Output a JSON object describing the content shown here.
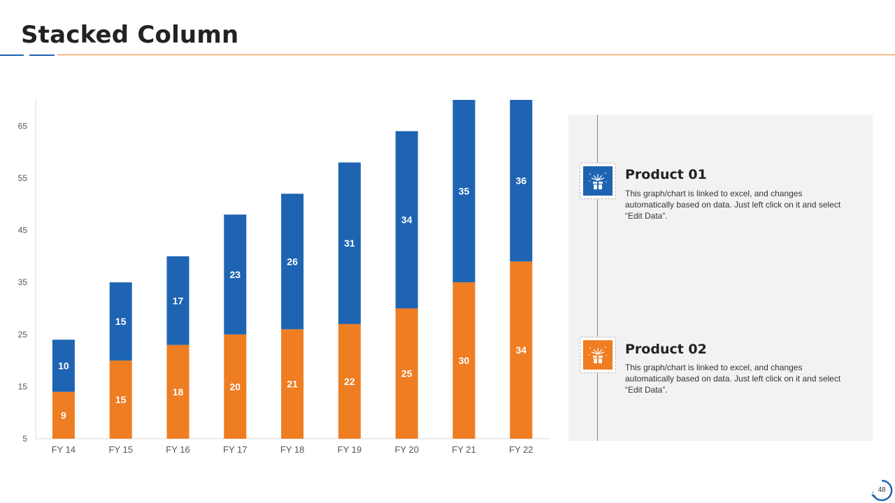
{
  "page": {
    "title": "Stacked Column",
    "page_number": "48"
  },
  "colors": {
    "product01": "#1e64b2",
    "product02": "#ef7d22",
    "panel": "#f2f2f2"
  },
  "legend": [
    {
      "title": "Product 01",
      "description": "This graph/chart is linked to excel, and changes automatically based on data. Just left click on it and select “Edit Data”.",
      "icon": "gift-box-fireworks-icon",
      "color": "#1e64b2"
    },
    {
      "title": "Product 02",
      "description": "This graph/chart is linked to excel, and changes automatically based on data. Just left click on it and select “Edit Data”.",
      "icon": "gift-box-fireworks-icon",
      "color": "#ef7d22"
    }
  ],
  "chart_data": {
    "type": "bar",
    "stacked": true,
    "title": "",
    "xlabel": "",
    "ylabel": "",
    "categories": [
      "FY 14",
      "FY 15",
      "FY 16",
      "FY 17",
      "FY 18",
      "FY 19",
      "FY 20",
      "FY 21",
      "FY 22"
    ],
    "series": [
      {
        "name": "Product 02",
        "color": "#ef7d22",
        "values": [
          9,
          15,
          18,
          20,
          21,
          22,
          25,
          30,
          34
        ]
      },
      {
        "name": "Product 01",
        "color": "#1e64b2",
        "values": [
          10,
          15,
          17,
          23,
          26,
          31,
          34,
          35,
          36
        ]
      }
    ],
    "ylim": [
      5,
      70
    ],
    "yticks": [
      5,
      15,
      25,
      35,
      45,
      55,
      65
    ],
    "grid": false,
    "legend_position": "right"
  }
}
